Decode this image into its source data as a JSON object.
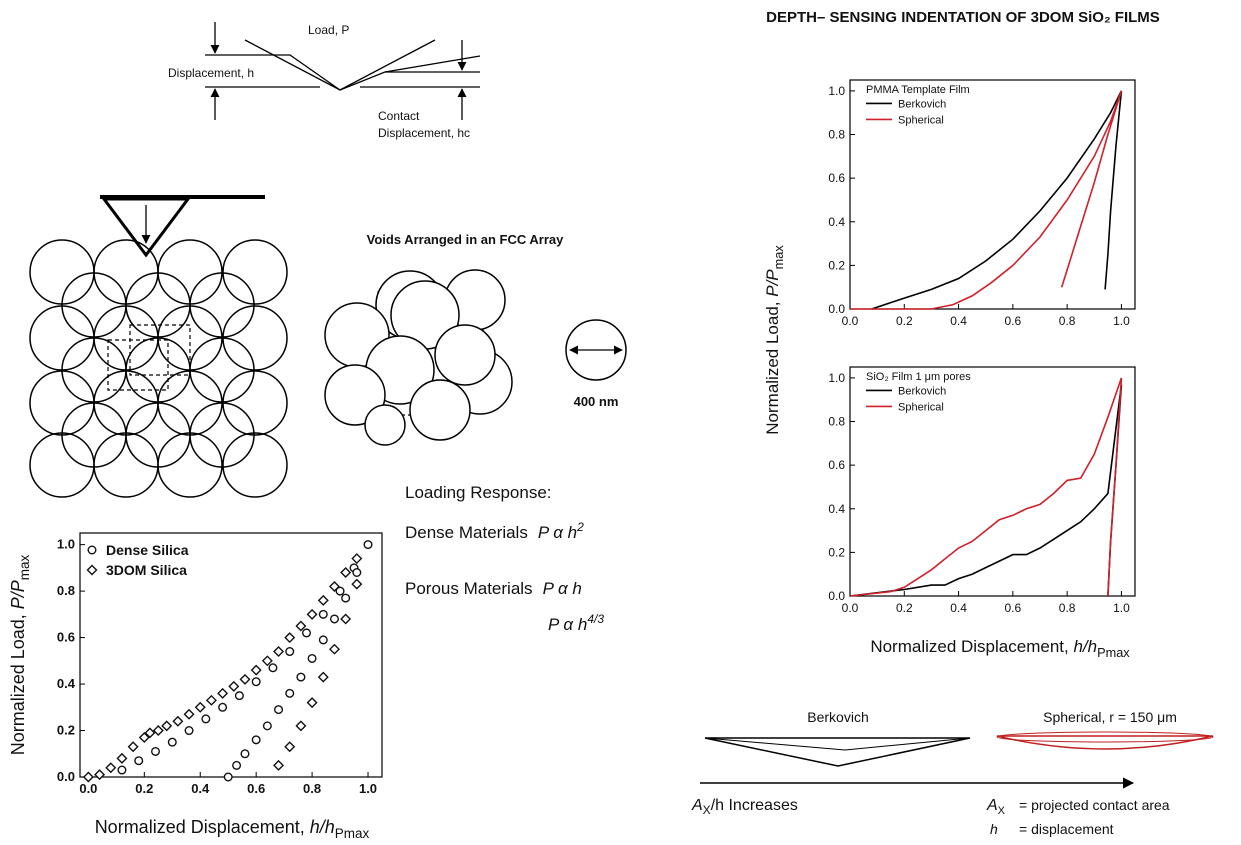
{
  "title": "DEPTH– SENSING INDENTATION OF 3DOM SiO₂ FILMS",
  "schematic": {
    "load": "Load, P",
    "displacement": "Displacement, h",
    "contact_1": "Contact",
    "contact_2": "Displacement, hc",
    "fcc": "Voids Arranged in an FCC Array",
    "pore_size": "400 nm"
  },
  "loading_response": {
    "heading": "Loading Response:",
    "dense": {
      "label": "Dense Materials",
      "formula": "P α h",
      "exp": "2"
    },
    "porous": {
      "label": "Porous Materials",
      "formula": "P α h"
    },
    "porous_alt": {
      "formula": "P α h",
      "exp": "4/3"
    }
  },
  "indenters": {
    "berkovich": "Berkovich",
    "spherical": "Spherical, r = 150 μm",
    "arrow": {
      "sym": "A",
      "sub": "X",
      "rest": "/h Increases"
    },
    "key_ax": {
      "sym": "A",
      "sub": "X",
      "rest": "= projected contact area"
    },
    "key_h": {
      "sym": "h",
      "rest": "= displacement"
    }
  },
  "chart_data": [
    {
      "type": "scatter",
      "x_label": [
        "Normalized Displacement, ",
        "h/h",
        "Pmax"
      ],
      "y_label": [
        "Normalized Load, ",
        "P/P",
        "max"
      ],
      "xlim": [
        -0.03,
        1.05
      ],
      "ylim": [
        0,
        1.05
      ],
      "xticks": [
        {
          "value": 0,
          "label": "0.0"
        },
        {
          "value": 0.2,
          "label": "0.2"
        },
        {
          "value": 0.4,
          "label": "0.4"
        },
        {
          "value": 0.6,
          "label": "0.6"
        },
        {
          "value": 0.8,
          "label": "0.8"
        },
        {
          "value": 1,
          "label": "1.0"
        }
      ],
      "yticks": [
        {
          "value": 0,
          "label": "0.0"
        },
        {
          "value": 0.2,
          "label": "0.2"
        },
        {
          "value": 0.4,
          "label": "0.4"
        },
        {
          "value": 0.6,
          "label": "0.6"
        },
        {
          "value": 0.8,
          "label": "0.8"
        },
        {
          "value": 1,
          "label": "1.0"
        }
      ],
      "series": [
        {
          "name": "Dense Silica",
          "marker": "circle",
          "color": "#111111",
          "x": [
            0.12,
            0.18,
            0.24,
            0.3,
            0.36,
            0.42,
            0.48,
            0.54,
            0.6,
            0.66,
            0.72,
            0.78,
            0.84,
            0.9,
            0.95,
            1.0,
            0.5,
            0.53,
            0.56,
            0.6,
            0.64,
            0.68,
            0.72,
            0.76,
            0.8,
            0.84,
            0.88,
            0.92,
            0.96
          ],
          "values": [
            0.03,
            0.07,
            0.11,
            0.15,
            0.2,
            0.25,
            0.3,
            0.35,
            0.41,
            0.47,
            0.54,
            0.62,
            0.7,
            0.8,
            0.9,
            1.0,
            0,
            0.05,
            0.1,
            0.16,
            0.22,
            0.29,
            0.36,
            0.43,
            0.51,
            0.59,
            0.68,
            0.77,
            0.88
          ]
        },
        {
          "name": "3DOM Silica",
          "marker": "diamond",
          "color": "#111111",
          "x": [
            0,
            0.04,
            0.08,
            0.12,
            0.16,
            0.2,
            0.22,
            0.25,
            0.28,
            0.32,
            0.36,
            0.4,
            0.44,
            0.48,
            0.52,
            0.56,
            0.6,
            0.64,
            0.68,
            0.72,
            0.76,
            0.8,
            0.84,
            0.88,
            0.92,
            0.96,
            0.68,
            0.72,
            0.76,
            0.8,
            0.84,
            0.88,
            0.92,
            0.96
          ],
          "values": [
            0,
            0.01,
            0.04,
            0.08,
            0.13,
            0.17,
            0.19,
            0.2,
            0.22,
            0.24,
            0.27,
            0.3,
            0.33,
            0.36,
            0.39,
            0.42,
            0.46,
            0.5,
            0.54,
            0.6,
            0.65,
            0.7,
            0.76,
            0.82,
            0.88,
            0.94,
            0.05,
            0.13,
            0.22,
            0.32,
            0.43,
            0.55,
            0.68,
            0.83
          ]
        }
      ]
    },
    {
      "type": "line",
      "legend_title": "PMMA Template Film",
      "y_label": [
        "Normalized Load, ",
        "P/P",
        "max"
      ],
      "xlim": [
        0,
        1.05
      ],
      "ylim": [
        0,
        1.05
      ],
      "xticks": [
        {
          "value": 0,
          "label": "0.0"
        },
        {
          "value": 0.2,
          "label": "0.2"
        },
        {
          "value": 0.4,
          "label": "0.4"
        },
        {
          "value": 0.6,
          "label": "0.6"
        },
        {
          "value": 0.8,
          "label": "0.8"
        },
        {
          "value": 1,
          "label": "1.0"
        }
      ],
      "yticks": [
        {
          "value": 0,
          "label": "0.0"
        },
        {
          "value": 0.2,
          "label": "0.2"
        },
        {
          "value": 0.4,
          "label": "0.4"
        },
        {
          "value": 0.6,
          "label": "0.6"
        },
        {
          "value": 0.8,
          "label": "0.8"
        },
        {
          "value": 1,
          "label": "1.0"
        }
      ],
      "series": [
        {
          "name": "Berkovich",
          "color": "#000000",
          "x": [
            0.08,
            0.2,
            0.3,
            0.4,
            0.5,
            0.6,
            0.7,
            0.8,
            0.9,
            0.96,
            1.0,
            0.98,
            0.96,
            0.95,
            0.94
          ],
          "values": [
            0,
            0.05,
            0.09,
            0.14,
            0.22,
            0.32,
            0.45,
            0.6,
            0.78,
            0.9,
            1.0,
            0.75,
            0.45,
            0.25,
            0.09
          ]
        },
        {
          "name": "Spherical",
          "color": "#d0202a",
          "x": [
            0,
            0.3,
            0.38,
            0.45,
            0.52,
            0.6,
            0.7,
            0.8,
            0.9,
            0.96,
            1.0,
            0.95,
            0.9,
            0.85,
            0.81,
            0.78
          ],
          "values": [
            0,
            0,
            0.02,
            0.06,
            0.12,
            0.2,
            0.33,
            0.5,
            0.7,
            0.86,
            1.0,
            0.8,
            0.58,
            0.38,
            0.22,
            0.1
          ]
        }
      ]
    },
    {
      "type": "line",
      "legend_title": "SiO₂ Film 1 μm pores",
      "x_label": [
        "Normalized Displacement, ",
        "h/h",
        "Pmax"
      ],
      "xlim": [
        0,
        1.05
      ],
      "ylim": [
        0,
        1.05
      ],
      "xticks": [
        {
          "value": 0,
          "label": "0.0"
        },
        {
          "value": 0.2,
          "label": "0.2"
        },
        {
          "value": 0.4,
          "label": "0.4"
        },
        {
          "value": 0.6,
          "label": "0.6"
        },
        {
          "value": 0.8,
          "label": "0.8"
        },
        {
          "value": 1,
          "label": "1.0"
        }
      ],
      "yticks": [
        {
          "value": 0,
          "label": "0.0"
        },
        {
          "value": 0.2,
          "label": "0.2"
        },
        {
          "value": 0.4,
          "label": "0.4"
        },
        {
          "value": 0.6,
          "label": "0.6"
        },
        {
          "value": 0.8,
          "label": "0.8"
        },
        {
          "value": 1,
          "label": "1.0"
        }
      ],
      "series": [
        {
          "name": "Berkovich",
          "color": "#000000",
          "x": [
            0,
            0.2,
            0.3,
            0.35,
            0.4,
            0.45,
            0.5,
            0.55,
            0.6,
            0.65,
            0.7,
            0.75,
            0.8,
            0.85,
            0.9,
            0.95,
            1.0,
            0.98,
            0.96,
            0.95
          ],
          "values": [
            0,
            0.03,
            0.05,
            0.05,
            0.08,
            0.1,
            0.13,
            0.16,
            0.19,
            0.19,
            0.22,
            0.26,
            0.3,
            0.34,
            0.4,
            0.47,
            0.97,
            0.6,
            0.25,
            0
          ]
        },
        {
          "name": "Spherical",
          "color": "#d0202a",
          "x": [
            0,
            0.15,
            0.2,
            0.25,
            0.3,
            0.35,
            0.4,
            0.45,
            0.5,
            0.55,
            0.6,
            0.65,
            0.7,
            0.75,
            0.8,
            0.85,
            0.9,
            0.95,
            1.0,
            0.98,
            0.96,
            0.95
          ],
          "values": [
            0,
            0.02,
            0.04,
            0.08,
            0.12,
            0.17,
            0.22,
            0.25,
            0.3,
            0.35,
            0.37,
            0.4,
            0.42,
            0.47,
            0.53,
            0.54,
            0.65,
            0.82,
            1.0,
            0.6,
            0.25,
            0
          ]
        }
      ]
    }
  ]
}
